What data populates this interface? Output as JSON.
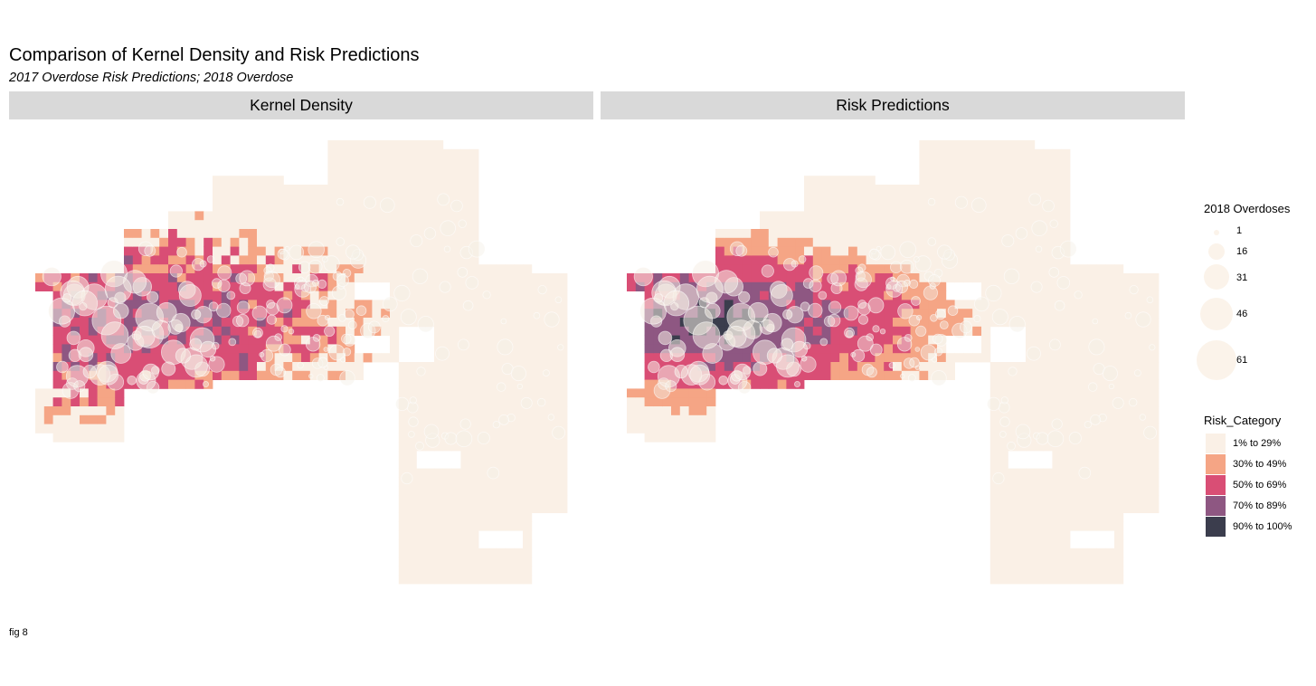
{
  "title": "Comparison of Kernel Density and Risk Predictions",
  "subtitle": "2017 Overdose Risk Predictions; 2018 Overdose",
  "caption": "fig 8",
  "panels": [
    {
      "label": "Kernel Density"
    },
    {
      "label": "Risk Predictions"
    }
  ],
  "legend_sizes": {
    "title": "2018 Overdoses",
    "items": [
      "1",
      "16",
      "31",
      "46",
      "61"
    ]
  },
  "legend_risk": {
    "title": "Risk_Category",
    "items": [
      {
        "label": "1% to 29%",
        "color": "#faf0e6"
      },
      {
        "label": "30% to 49%",
        "color": "#f5a585"
      },
      {
        "label": "50% to 69%",
        "color": "#d94e75"
      },
      {
        "label": "70% to 89%",
        "color": "#8e5782"
      },
      {
        "label": "90% to 100%",
        "color": "#3b3d4d"
      }
    ]
  }
}
